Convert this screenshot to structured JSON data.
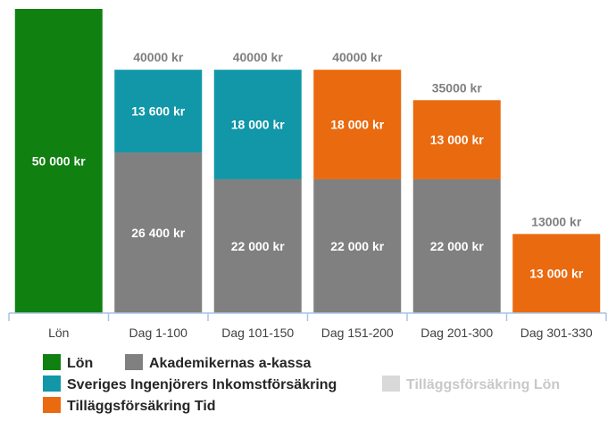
{
  "chart_data": {
    "type": "bar",
    "stacked": true,
    "categories": [
      "Lön",
      "Dag 1-100",
      "Dag 101-150",
      "Dag 151-200",
      "Dag 201-300",
      "Dag 301-330"
    ],
    "ylim": [
      0,
      50000
    ],
    "grid": false,
    "legend_position": "bottom",
    "series": [
      {
        "name": "Lön",
        "color": "#108010",
        "values": [
          50000,
          0,
          0,
          0,
          0,
          0
        ],
        "labels": [
          "50 000 kr",
          "",
          "",
          "",
          "",
          ""
        ]
      },
      {
        "name": "Akademikernas a-kassa",
        "color": "#808080",
        "values": [
          0,
          26400,
          22000,
          22000,
          22000,
          0
        ],
        "labels": [
          "",
          "26 400 kr",
          "22 000 kr",
          "22 000 kr",
          "22 000 kr",
          ""
        ]
      },
      {
        "name": "Sveriges Ingenjörers Inkomstförsäkring",
        "color": "#1197a8",
        "values": [
          0,
          13600,
          18000,
          0,
          0,
          0
        ],
        "labels": [
          "",
          "13 600 kr",
          "18 000 kr",
          "",
          "",
          ""
        ]
      },
      {
        "name": "Tilläggsförsäkring Tid",
        "color": "#ea6a0f",
        "values": [
          0,
          0,
          0,
          18000,
          13000,
          13000
        ],
        "labels": [
          "",
          "",
          "",
          "18 000 kr",
          "13 000 kr",
          "13 000 kr"
        ]
      },
      {
        "name": "Tilläggsförsäkring Lön",
        "color": "#d9d9d9",
        "values": [
          0,
          0,
          0,
          0,
          0,
          0
        ],
        "labels": [
          "",
          "",
          "",
          "",
          "",
          ""
        ]
      }
    ],
    "totals": [
      "",
      "40000 kr",
      "40000 kr",
      "40000 kr",
      "35000 kr",
      "13000 kr"
    ],
    "axis_color": "#a9c4e5"
  }
}
